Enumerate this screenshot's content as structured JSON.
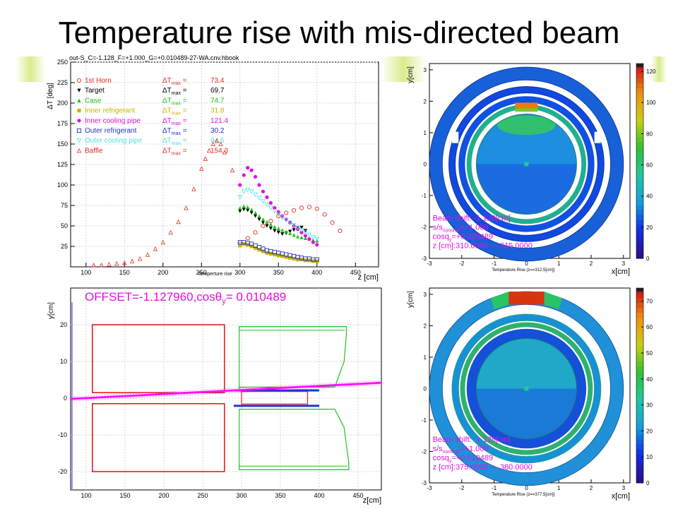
{
  "slide": {
    "title": "Temperature rise with mis-directed beam",
    "accent_color": "#d8ec8c"
  },
  "chart_data": [
    {
      "id": "temperature-rise-profile",
      "type": "scatter",
      "title": "out-S_C=-1.128_F=+1.000_G=+0.010489-27-WA.cnv.hbook",
      "subtitle": "Temperture rise",
      "xlabel": "z [cm]",
      "ylabel": "ΔT [deg]",
      "xlim": [
        80,
        480
      ],
      "ylim": [
        0,
        250
      ],
      "xticks": [
        100,
        150,
        200,
        250,
        300,
        350,
        400,
        450
      ],
      "yticks": [
        25,
        50,
        75,
        100,
        125,
        150,
        175,
        200,
        225,
        250
      ],
      "grid": true,
      "legend_position": "top-left",
      "max_label": "ΔT",
      "max_sub": "max",
      "series": [
        {
          "name": "1st Horn",
          "max": "73.4",
          "color": "#e03020",
          "marker": "open-circle",
          "x": [
            300,
            310,
            320,
            330,
            340,
            350,
            360,
            370,
            380,
            390,
            400,
            410,
            420,
            430
          ],
          "y": [
            28,
            35,
            42,
            50,
            56,
            62,
            66,
            69,
            72,
            73,
            71,
            64,
            54,
            44
          ]
        },
        {
          "name": "Target",
          "max": "69.7",
          "color": "#000000",
          "marker": "filled-triangle-down",
          "x": [
            300,
            305,
            310,
            315,
            320,
            325,
            330,
            335,
            340,
            345,
            350,
            355,
            360,
            365,
            370,
            375,
            380,
            385
          ],
          "y": [
            68,
            70,
            69,
            66,
            62,
            58,
            54,
            50,
            47,
            44,
            42,
            40,
            41,
            43,
            45,
            47,
            48,
            44
          ]
        },
        {
          "name": "Case",
          "max": "74.7",
          "color": "#20c020",
          "marker": "filled-triangle",
          "x": [
            300,
            305,
            310,
            315,
            320,
            325,
            330,
            335,
            340,
            345,
            350,
            355,
            360,
            365,
            370,
            375,
            380,
            385,
            390,
            395,
            400
          ],
          "y": [
            72,
            74,
            73,
            70,
            66,
            62,
            58,
            55,
            52,
            49,
            47,
            45,
            43,
            41,
            39,
            37,
            36,
            35,
            34,
            33,
            32
          ]
        },
        {
          "name": "Inner refrigerant",
          "max": "31.8",
          "color": "#c8b400",
          "marker": "filled-square",
          "x": [
            300,
            305,
            310,
            315,
            320,
            325,
            330,
            335,
            340,
            345,
            350,
            355,
            360,
            365,
            370,
            375,
            380,
            385,
            390,
            395,
            400
          ],
          "y": [
            26,
            28,
            27,
            25,
            23,
            21,
            19,
            17,
            16,
            15,
            14,
            13,
            12,
            11,
            10,
            9,
            9,
            8,
            8,
            7,
            7
          ]
        },
        {
          "name": "Inner cooling pipe",
          "max": "121.4",
          "color": "#e010e0",
          "marker": "filled-circle",
          "x": [
            300,
            305,
            310,
            315,
            320,
            325,
            330,
            335,
            340,
            345,
            350,
            355,
            360,
            365,
            370,
            375,
            380,
            385,
            390,
            395,
            400
          ],
          "y": [
            100,
            112,
            121,
            118,
            110,
            100,
            92,
            85,
            78,
            72,
            67,
            62,
            58,
            54,
            50,
            46,
            42,
            38,
            34,
            30,
            27
          ]
        },
        {
          "name": "Outer refrigerant",
          "max": "30.2",
          "color": "#2030d0",
          "marker": "open-square",
          "x": [
            300,
            305,
            310,
            315,
            320,
            325,
            330,
            335,
            340,
            345,
            350,
            355,
            360,
            365,
            370,
            375,
            380,
            385,
            390,
            395,
            400
          ],
          "y": [
            30,
            30,
            29,
            28,
            26,
            24,
            22,
            20,
            19,
            18,
            17,
            16,
            15,
            14,
            13,
            12,
            11,
            10,
            10,
            9,
            9
          ]
        },
        {
          "name": "Outer cooling pipe",
          "max": "94.6",
          "color": "#50e0e0",
          "marker": "open-triangle-down",
          "x": [
            300,
            305,
            310,
            315,
            320,
            325,
            330,
            335,
            340,
            345,
            350,
            355,
            360,
            365,
            370,
            375,
            380,
            385,
            390,
            395,
            400
          ],
          "y": [
            85,
            92,
            94,
            92,
            88,
            84,
            80,
            76,
            72,
            68,
            64,
            60,
            57,
            54,
            51,
            48,
            45,
            42,
            39,
            36,
            34
          ]
        },
        {
          "name": "Baffle",
          "max": "154.3",
          "color": "#e03020",
          "marker": "open-triangle",
          "x": [
            110,
            120,
            130,
            140,
            150,
            160,
            170,
            180,
            190,
            200,
            210,
            220,
            230,
            240,
            250,
            255,
            260,
            265,
            270,
            275,
            280,
            290
          ],
          "y": [
            2,
            2,
            3,
            4,
            5,
            7,
            10,
            15,
            22,
            30,
            42,
            55,
            72,
            95,
            120,
            132,
            142,
            150,
            154,
            150,
            140,
            118
          ]
        }
      ]
    },
    {
      "id": "geometry-side-view",
      "type": "diagram",
      "annotation": "OFFSET=-1.127960,cosθ",
      "annotation_sub": "y",
      "annotation_tail": "= 0.010489",
      "xlabel": "z[cm]",
      "ylabel": "y[cm]",
      "xlim": [
        80,
        480
      ],
      "ylim": [
        -25,
        30
      ],
      "xticks": [
        100,
        150,
        200,
        250,
        300,
        350,
        400,
        450
      ],
      "yticks": [
        -20,
        -10,
        0,
        10,
        20
      ],
      "beam": {
        "z_start": 80,
        "y_start": -0.2,
        "z_end": 480,
        "y_end": 4.2,
        "color": "#ff10ff"
      },
      "horn_color": "#e02020",
      "target_color": "#20c020"
    },
    {
      "id": "cross-section-upstream",
      "type": "heatmap",
      "xlabel": "x[cm]",
      "ylabel": "y[cm]",
      "subtitle": "Temperature Rise (z==312.5[cm])",
      "xlim": [
        -3,
        3.2
      ],
      "ylim": [
        -3,
        3.2
      ],
      "xticks": [
        -3,
        -2,
        -1,
        0,
        1,
        2,
        3
      ],
      "yticks": [
        -3,
        -2,
        -1,
        0,
        1,
        2,
        3
      ],
      "zlim": [
        0,
        125
      ],
      "zticks": [
        0,
        20,
        40,
        60,
        80,
        100,
        120
      ],
      "info": [
        "Beam shift: -1.128[cm]",
        "s/s",
        "nominal",
        "=+1.000",
        "cosq",
        "y",
        "=+0.010489",
        "z [cm]:310.0000 --- 315.0000"
      ]
    },
    {
      "id": "cross-section-downstream",
      "type": "heatmap",
      "xlabel": "x[cm]",
      "ylabel": "y[cm]",
      "subtitle": "Temperature Rise (z==377.5[cm])",
      "xlim": [
        -3,
        3.2
      ],
      "ylim": [
        -3,
        3.2
      ],
      "xticks": [
        -3,
        -2,
        -1,
        0,
        1,
        2,
        3
      ],
      "yticks": [
        -3,
        -2,
        -1,
        0,
        1,
        2,
        3
      ],
      "zlim": [
        0,
        75
      ],
      "zticks": [
        0,
        10,
        20,
        30,
        40,
        50,
        60,
        70
      ],
      "info": [
        "Beam shift: -1.128[cm]",
        "s/s",
        "nominal",
        "=+1.000",
        "cosq",
        "y",
        "=+0.010489",
        "z [cm]:375.0000 --- 380.0000"
      ]
    }
  ]
}
